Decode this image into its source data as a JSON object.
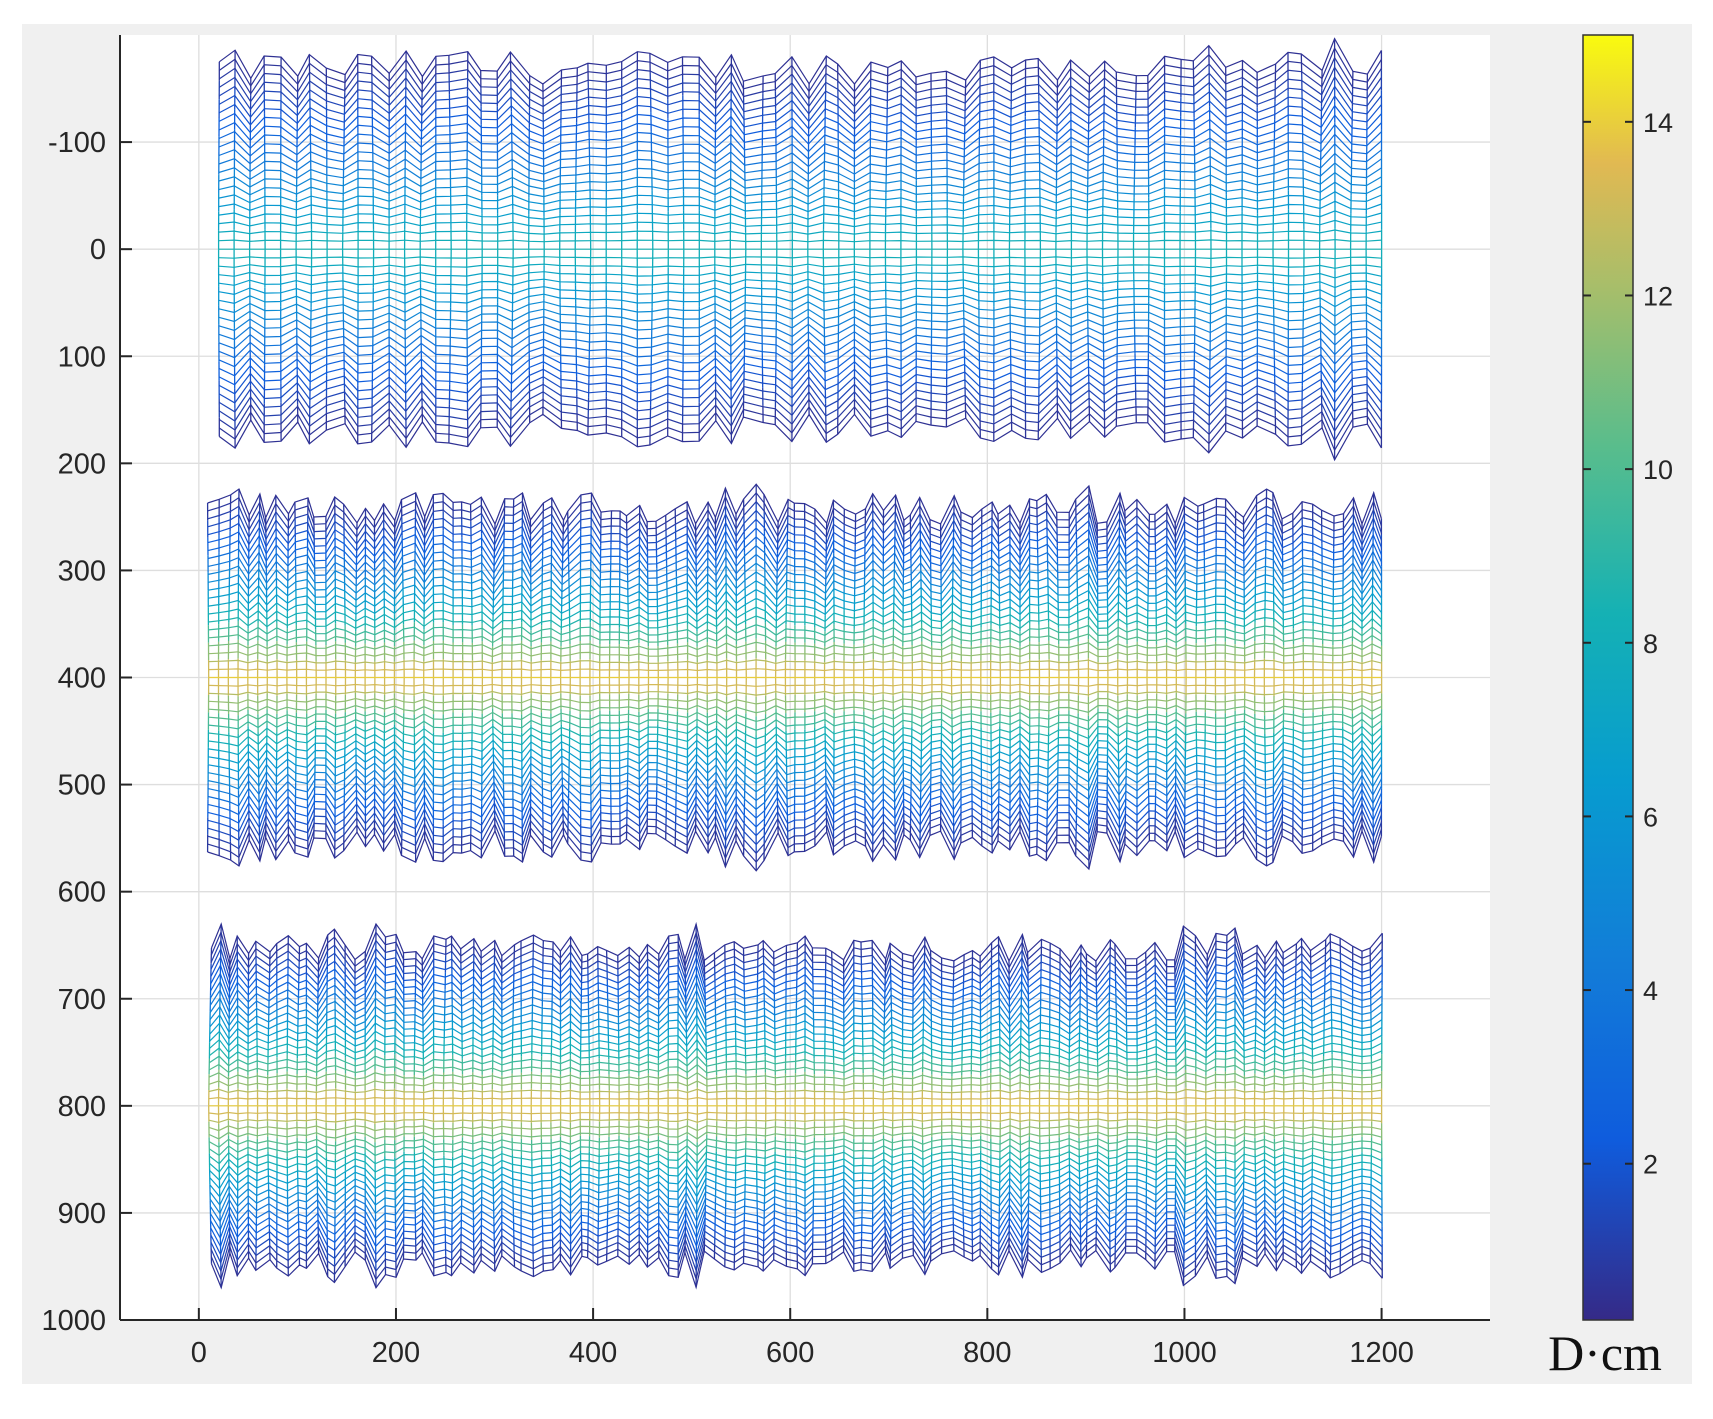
{
  "chart_data": {
    "type": "line",
    "xlim": [
      -80,
      1310
    ],
    "ylim": [
      1000,
      -200
    ],
    "y_reversed": true,
    "grid": true,
    "x_ticks": [
      0,
      200,
      400,
      600,
      800,
      1000,
      1200
    ],
    "x_tick_labels": [
      "0",
      "200",
      "400",
      "600",
      "800",
      "1000",
      "1200"
    ],
    "y_ticks": [
      -100,
      0,
      100,
      200,
      300,
      400,
      500,
      600,
      700,
      800,
      900,
      1000
    ],
    "y_tick_labels": [
      "-100",
      "0",
      "100",
      "200",
      "300",
      "400",
      "500",
      "600",
      "700",
      "800",
      "900",
      "1000"
    ],
    "bands": [
      {
        "x_start": 20,
        "x_end": 1200,
        "center": 0,
        "half_width": 170,
        "peak_value": 8.5,
        "columns": 75
      },
      {
        "x_start": 10,
        "x_end": 1200,
        "center": 400,
        "half_width": 158,
        "peak_value": 14,
        "columns": 120
      },
      {
        "x_start": 10,
        "x_end": 1200,
        "center": 800,
        "half_width": 148,
        "peak_value": 14,
        "columns": 120
      }
    ],
    "colorbar": {
      "colormap": "parula",
      "range": [
        0.2,
        15
      ],
      "ticks": [
        2,
        4,
        6,
        8,
        10,
        12,
        14
      ],
      "tick_labels": [
        "2",
        "4",
        "6",
        "8",
        "10",
        "12",
        "14"
      ],
      "label": "D·cm"
    }
  }
}
